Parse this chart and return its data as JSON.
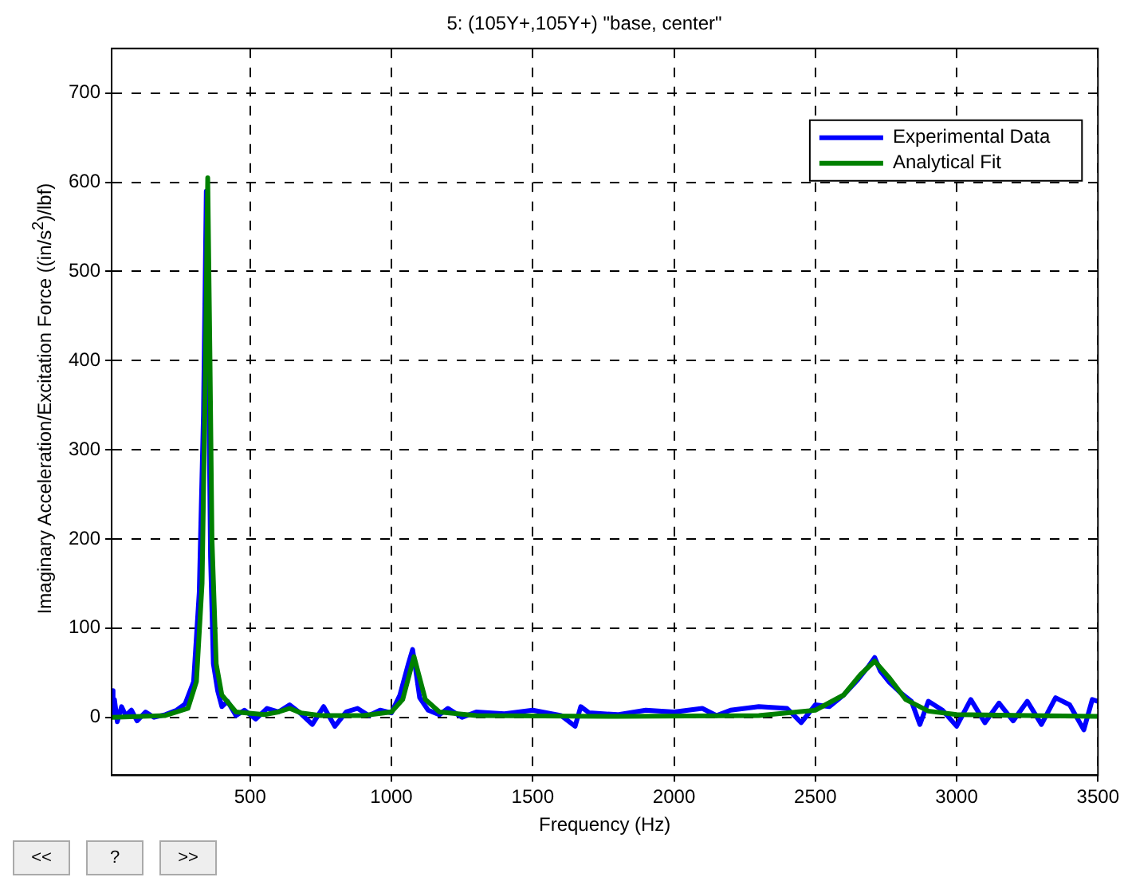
{
  "chart_data": {
    "type": "line",
    "title": "5: (105Y+,105Y+) \"base, center\"",
    "xlabel": "Frequency (Hz)",
    "ylabel": "Imaginary Acceleration/Excitation Force ((in/s$^{2}$)/lbf)",
    "xlim": [
      10,
      3500
    ],
    "xticks": [
      500,
      1000,
      1500,
      2000,
      2500,
      3000,
      3500
    ],
    "ylim": [
      -65,
      750
    ],
    "yticks": [
      0,
      100,
      200,
      300,
      400,
      500,
      600,
      700
    ],
    "grid": true,
    "legend": "top right",
    "marker": "none",
    "line_style": "solid",
    "annotations": [
      "<<",
      "?",
      ">>"
    ],
    "series": [
      {
        "name": "Experimental Data",
        "color": "#0000ff",
        "x": [
          10,
          15,
          20,
          30,
          45,
          60,
          80,
          100,
          130,
          160,
          200,
          240,
          270,
          300,
          320,
          335,
          345,
          352,
          360,
          370,
          385,
          400,
          420,
          450,
          480,
          520,
          560,
          600,
          640,
          680,
          720,
          760,
          800,
          840,
          880,
          920,
          960,
          1000,
          1030,
          1060,
          1075,
          1085,
          1100,
          1130,
          1170,
          1200,
          1250,
          1300,
          1400,
          1500,
          1600,
          1650,
          1670,
          1700,
          1800,
          1900,
          2000,
          2100,
          2150,
          2200,
          2300,
          2400,
          2450,
          2500,
          2550,
          2600,
          2650,
          2690,
          2710,
          2730,
          2760,
          2800,
          2840,
          2870,
          2900,
          2950,
          3000,
          3050,
          3100,
          3150,
          3200,
          3250,
          3300,
          3350,
          3400,
          3450,
          3480,
          3500
        ],
        "values": [
          30,
          5,
          20,
          -5,
          12,
          2,
          8,
          -4,
          6,
          0,
          3,
          8,
          15,
          40,
          140,
          340,
          590,
          420,
          180,
          60,
          30,
          12,
          18,
          2,
          8,
          -2,
          10,
          6,
          14,
          4,
          -8,
          12,
          -10,
          6,
          10,
          2,
          8,
          5,
          25,
          60,
          76,
          55,
          22,
          8,
          3,
          10,
          0,
          6,
          4,
          8,
          2,
          -10,
          12,
          5,
          3,
          8,
          6,
          10,
          2,
          8,
          12,
          10,
          -6,
          14,
          12,
          25,
          42,
          58,
          67,
          52,
          40,
          28,
          18,
          -8,
          18,
          8,
          -10,
          20,
          -6,
          16,
          -4,
          18,
          -8,
          22,
          14,
          -14,
          20,
          18
        ]
      },
      {
        "name": "Analytical Fit",
        "color": "#008000",
        "x": [
          10,
          200,
          280,
          310,
          330,
          340,
          350,
          358,
          365,
          380,
          400,
          450,
          550,
          600,
          640,
          680,
          750,
          900,
          1000,
          1040,
          1065,
          1080,
          1095,
          1120,
          1170,
          1300,
          1800,
          2300,
          2500,
          2600,
          2660,
          2710,
          2760,
          2820,
          2900,
          3000,
          3500
        ],
        "values": [
          0,
          2,
          10,
          40,
          150,
          350,
          605,
          400,
          200,
          60,
          25,
          6,
          3,
          6,
          10,
          5,
          2,
          2,
          6,
          20,
          50,
          68,
          50,
          20,
          6,
          2,
          1,
          2,
          8,
          25,
          48,
          63,
          45,
          20,
          7,
          3,
          1
        ]
      }
    ]
  }
}
